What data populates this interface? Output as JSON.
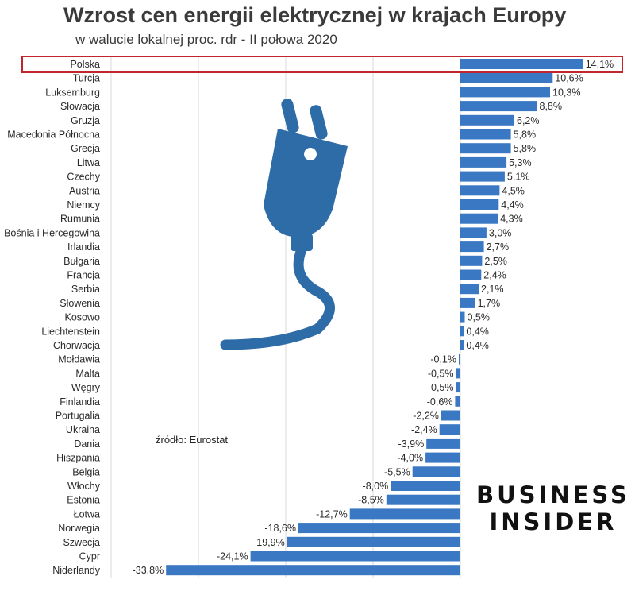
{
  "title": "Wzrost cen energii elektrycznej w krajach Europy",
  "subtitle": "w walucie lokalnej proc. rdr - II połowa 2020",
  "source": "źródło: Eurostat",
  "brand": {
    "line1": "BUSINESS",
    "line2": "INSIDER"
  },
  "colors": {
    "bar": "#3a78c4",
    "highlight": "#c0262b",
    "grid": "#d9d9d9"
  },
  "icon": "electric-plug-icon",
  "chart_data": {
    "type": "bar",
    "orientation": "horizontal",
    "title": "Wzrost cen energii elektrycznej w krajach Europy",
    "subtitle": "w walucie lokalnej proc. rdr - II połowa 2020",
    "xlim": [
      -40,
      15
    ],
    "grid": true,
    "highlighted_category": "Polska",
    "categories": [
      "Polska",
      "Turcja",
      "Luksemburg",
      "Słowacja",
      "Gruzja",
      "Macedonia Północna",
      "Grecja",
      "Litwa",
      "Czechy",
      "Austria",
      "Niemcy",
      "Rumunia",
      "Bośnia i Hercegowina",
      "Irlandia",
      "Bułgaria",
      "Francja",
      "Serbia",
      "Słowenia",
      "Kosowo",
      "Liechtenstein",
      "Chorwacja",
      "Mołdawia",
      "Malta",
      "Węgry",
      "Finlandia",
      "Portugalia",
      "Ukraina",
      "Dania",
      "Hiszpania",
      "Belgia",
      "Włochy",
      "Estonia",
      "Łotwa",
      "Norwegia",
      "Szwecja",
      "Cypr",
      "Niderlandy"
    ],
    "values": [
      14.1,
      10.6,
      10.3,
      8.8,
      6.2,
      5.8,
      5.8,
      5.3,
      5.1,
      4.5,
      4.4,
      4.3,
      3.0,
      2.7,
      2.5,
      2.4,
      2.1,
      1.7,
      0.5,
      0.4,
      0.4,
      -0.1,
      -0.5,
      -0.5,
      -0.6,
      -2.2,
      -2.4,
      -3.9,
      -4.0,
      -5.5,
      -8.0,
      -8.5,
      -12.7,
      -18.6,
      -19.9,
      -24.1,
      -33.8
    ],
    "value_labels": [
      "14,1%",
      "10,6%",
      "10,3%",
      "8,8%",
      "6,2%",
      "5,8%",
      "5,8%",
      "5,3%",
      "5,1%",
      "4,5%",
      "4,4%",
      "4,3%",
      "3,0%",
      "2,7%",
      "2,5%",
      "2,4%",
      "2,1%",
      "1,7%",
      "0,5%",
      "0,4%",
      "0,4%",
      "-0,1%",
      "-0,5%",
      "-0,5%",
      "-0,6%",
      "-2,2%",
      "-2,4%",
      "-3,9%",
      "-4,0%",
      "-5,5%",
      "-8,0%",
      "-8,5%",
      "-12,7%",
      "-18,6%",
      "-19,9%",
      "-24,1%",
      "-33,8%"
    ]
  }
}
